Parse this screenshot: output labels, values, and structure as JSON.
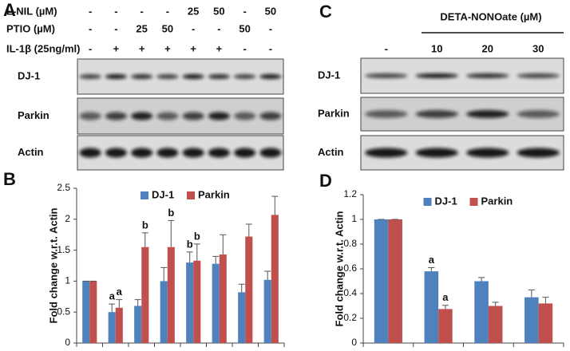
{
  "panel_labels": [
    "A",
    "B",
    "C",
    "D"
  ],
  "blot_a": {
    "conditions": [
      {
        "label": "L-NIL (µM)",
        "lanes": [
          "-",
          "-",
          "-",
          "-",
          "25",
          "50",
          "-",
          "50"
        ]
      },
      {
        "label": "PTIO (µM)",
        "lanes": [
          "-",
          "-",
          "25",
          "50",
          "-",
          "-",
          "50",
          "-"
        ]
      },
      {
        "label": "IL-1β (25ng/ml)",
        "lanes": [
          "-",
          "+",
          "+",
          "+",
          "+",
          "+",
          "-",
          "-"
        ]
      }
    ],
    "rows": [
      "DJ-1",
      "Parkin",
      "Actin"
    ]
  },
  "blot_c": {
    "treatment": "DETA-NONOate (µM)",
    "lanes": [
      "-",
      "10",
      "20",
      "30"
    ],
    "rows": [
      "DJ-1",
      "Parkin",
      "Actin"
    ]
  },
  "chart_data": [
    {
      "type": "bar",
      "ylabel": "Fold change w.r.t. Actin",
      "categories": [
        null,
        null,
        null,
        null,
        null,
        null,
        null,
        null
      ],
      "series": [
        {
          "name": "DJ-1",
          "color": "#4f81bd",
          "values": [
            1.0,
            0.5,
            0.6,
            1.0,
            1.3,
            1.28,
            0.82,
            1.02
          ],
          "errors": [
            0,
            0.13,
            0.1,
            0.22,
            0.17,
            0.12,
            0.13,
            0.14
          ],
          "annotations": [
            null,
            "a",
            null,
            null,
            "b",
            null,
            null,
            null
          ]
        },
        {
          "name": "Parkin",
          "color": "#c0504d",
          "values": [
            1.0,
            0.57,
            1.55,
            1.55,
            1.33,
            1.43,
            1.72,
            2.07
          ],
          "errors": [
            0,
            0.13,
            0.23,
            0.43,
            0.27,
            0.32,
            0.2,
            0.3
          ],
          "annotations": [
            null,
            "a",
            "b",
            "b",
            "b",
            null,
            null,
            null
          ]
        }
      ],
      "ylim": [
        0,
        2.5
      ],
      "yticks": [
        0,
        0.5,
        1,
        1.5,
        2,
        2.5
      ],
      "legend": "top"
    },
    {
      "type": "bar",
      "ylabel": "Fold change w.r.t. Actin",
      "categories": [
        null,
        null,
        null,
        null
      ],
      "series": [
        {
          "name": "DJ-1",
          "color": "#4f81bd",
          "values": [
            1.0,
            0.58,
            0.5,
            0.37
          ],
          "errors": [
            0,
            0.03,
            0.03,
            0.06
          ],
          "annotations": [
            null,
            "a",
            null,
            null
          ]
        },
        {
          "name": "Parkin",
          "color": "#c0504d",
          "values": [
            1.0,
            0.275,
            0.3,
            0.32
          ],
          "errors": [
            0,
            0.03,
            0.03,
            0.05
          ],
          "annotations": [
            null,
            "a",
            null,
            null
          ]
        }
      ],
      "ylim": [
        0,
        1.2
      ],
      "yticks": [
        0,
        0.2,
        0.4,
        0.6,
        0.8,
        1,
        1.2
      ],
      "legend": "top"
    }
  ]
}
